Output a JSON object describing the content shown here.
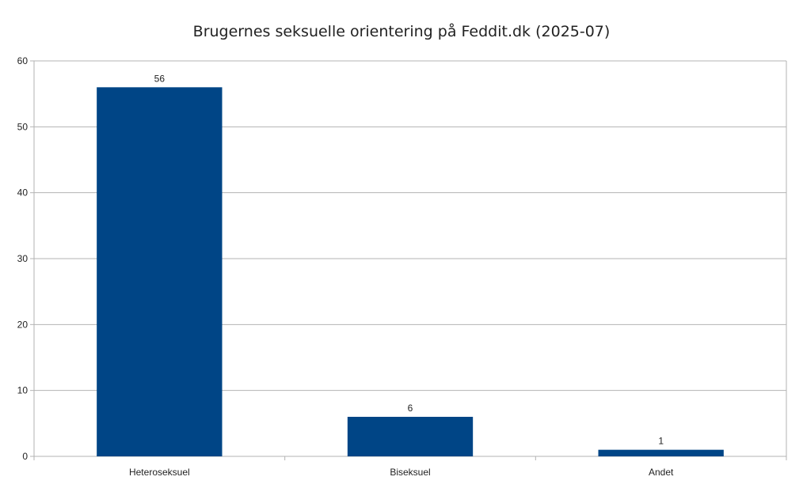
{
  "chart_data": {
    "type": "bar",
    "title": "Brugernes seksuelle orientering på Feddit.dk (2025-07)",
    "categories": [
      "Heteroseksuel",
      "Biseksuel",
      "Andet"
    ],
    "values": [
      56,
      6,
      1
    ],
    "ylim": [
      0,
      60
    ],
    "yticks": [
      0,
      10,
      20,
      30,
      40,
      50,
      60
    ],
    "grid": true,
    "legend": "none",
    "bar_color": "#004586",
    "data_labels": true
  }
}
